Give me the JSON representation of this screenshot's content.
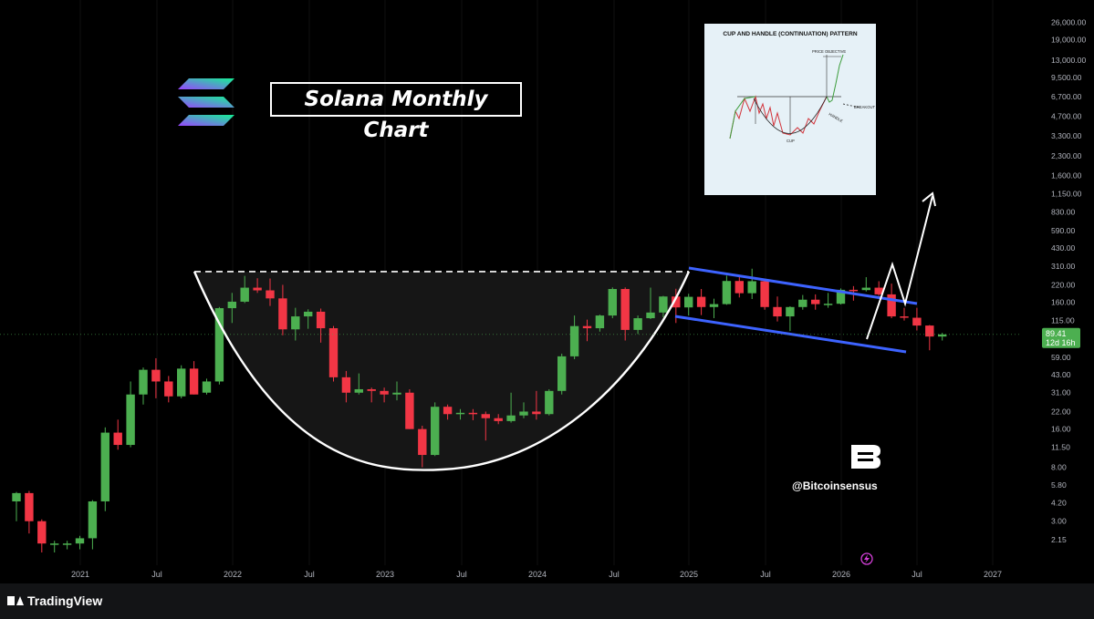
{
  "header": {
    "title": "Solana Monthly Chart"
  },
  "inset": {
    "title": "CUP AND HANDLE (CONTINUATION) PATTERN",
    "labels": {
      "price_objective": "PRICE OBJECTIVE",
      "breakout": "BREAKOUT",
      "handle": "HANDLE",
      "cup": "CUP"
    }
  },
  "branding": {
    "handle": "@Bitcoinsensus",
    "tradingview": "TradingView"
  },
  "chart_data": {
    "type": "candlestick",
    "title": "Solana Monthly Chart",
    "scale": "log",
    "ylim": [
      1.7,
      33000
    ],
    "y_ticks": [
      "26,000.00",
      "19,000.00",
      "13,000.00",
      "9,500.00",
      "6,700.00",
      "4,700.00",
      "3,300.00",
      "2,300.00",
      "1,600.00",
      "1,150.00",
      "830.00",
      "590.00",
      "430.00",
      "310.00",
      "220.00",
      "160.00",
      "115.00",
      "59.00",
      "43.00",
      "31.00",
      "22.00",
      "16.00",
      "11.50",
      "8.00",
      "5.80",
      "4.20",
      "3.00",
      "2.15"
    ],
    "x_ticks": [
      "2021",
      "Jul",
      "2022",
      "Jul",
      "2023",
      "Jul",
      "2024",
      "Jul",
      "2025",
      "Jul",
      "2026",
      "Jul",
      "2027"
    ],
    "last_price": {
      "value": "89.41",
      "countdown": "12d 16h"
    },
    "colors": {
      "up": "#4caf50",
      "down": "#f23645",
      "channel": "#3d63ff",
      "projection": "#ffffff"
    },
    "candles": [
      [
        4.3,
        5.1,
        3.0,
        5.0
      ],
      [
        5.0,
        5.2,
        2.4,
        3.0
      ],
      [
        3.0,
        3.1,
        1.7,
        2.0
      ],
      [
        2.0,
        2.1,
        1.7,
        2.0
      ],
      [
        2.0,
        2.1,
        1.8,
        2.0
      ],
      [
        2.0,
        2.3,
        1.8,
        2.2
      ],
      [
        2.2,
        4.4,
        1.8,
        4.3
      ],
      [
        4.3,
        16.5,
        3.6,
        15.0
      ],
      [
        15.0,
        19.0,
        11.0,
        12.0
      ],
      [
        12.0,
        38.0,
        11.5,
        30.0
      ],
      [
        30.0,
        49.0,
        25.0,
        47.0
      ],
      [
        47.0,
        58.0,
        28.0,
        38.0
      ],
      [
        38.0,
        42.0,
        26.0,
        29.0
      ],
      [
        29.0,
        51.0,
        28.0,
        48.0
      ],
      [
        48.0,
        55.0,
        30.0
      ],
      [
        31.0,
        40.0,
        30.0,
        38.0
      ],
      [
        38.0,
        147.0,
        36.0,
        144.0
      ],
      [
        144.0,
        190.0,
        110.0,
        162.0
      ],
      [
        162.0,
        259.0,
        158.0,
        209.0
      ],
      [
        209.0,
        248.0,
        190.0,
        199.0
      ],
      [
        199.0,
        247.0,
        150.0,
        172.0
      ],
      [
        172.0,
        220.0,
        88.0,
        98.0
      ],
      [
        98.0,
        145.0,
        80.0,
        124.0
      ],
      [
        124.0,
        141.0,
        99.0,
        135.0
      ],
      [
        135.0,
        143.0,
        77.0,
        100.0
      ],
      [
        100.0,
        104.0,
        38.0,
        41.0
      ],
      [
        41.0,
        46.0,
        26.0,
        31.0
      ],
      [
        31.0,
        44.0,
        30.0,
        33.0
      ],
      [
        33.0,
        34.0,
        26.0,
        32.0
      ],
      [
        32.0,
        34.0,
        26.0,
        30.0
      ],
      [
        30.0,
        38.0,
        27.0,
        31.0
      ],
      [
        31.0,
        33.0,
        16.0,
        16.0
      ],
      [
        16.0,
        17.0,
        8.0,
        10.0
      ],
      [
        10.0,
        26.0,
        9.8,
        24.0
      ],
      [
        24.0,
        25.0,
        19.0,
        21.0
      ],
      [
        21.0,
        23.0,
        19.0,
        21.5
      ],
      [
        21.5,
        23.0,
        18.8,
        21.0
      ],
      [
        21.0,
        22.0,
        13.0,
        19.5
      ],
      [
        19.5,
        21.0,
        17.5,
        18.5
      ],
      [
        18.5,
        31.0,
        18.0,
        20.5
      ],
      [
        20.5,
        26.0,
        19.5,
        22.0
      ],
      [
        22.0,
        32.0,
        19.0,
        21.0
      ],
      [
        21.0,
        33.0,
        20.5,
        32.0
      ],
      [
        32.0,
        63.0,
        30.0,
        60.0
      ],
      [
        60.0,
        126.0,
        57.0,
        104.0
      ],
      [
        104.0,
        117.0,
        79.0,
        100.0
      ],
      [
        100.0,
        128.0,
        94.0,
        126.0
      ],
      [
        126.0,
        210.0,
        120.0,
        204.0
      ],
      [
        204.0,
        210.0,
        80.0,
        97.0
      ],
      [
        97.0,
        126.0,
        90.0,
        120.0
      ],
      [
        120.0,
        209.0,
        118.0,
        133.0
      ],
      [
        133.0,
        180.0,
        122.0,
        178.0
      ],
      [
        178.0,
        205.0,
        110.0,
        146.0
      ],
      [
        146.0,
        187.0,
        126.0,
        177.0
      ],
      [
        177.0,
        204.0,
        127.0,
        147.0
      ],
      [
        147.0,
        171.0,
        120.0,
        155.0
      ],
      [
        155.0,
        260.0,
        153.0,
        236.0
      ],
      [
        236.0,
        264.0,
        175.0,
        189.0
      ],
      [
        189.0,
        295.0,
        170.0,
        235.0
      ],
      [
        235.0,
        240.0,
        140.0,
        147.0
      ],
      [
        147.0,
        178.0,
        113.0,
        124.0
      ],
      [
        124.0,
        149.0,
        95.0,
        147.0
      ],
      [
        147.0,
        183.0,
        140.0,
        168.0
      ],
      [
        168.0,
        185.0,
        140.0,
        155.0
      ],
      [
        155.0,
        190.0,
        145.0,
        156.0
      ],
      [
        156.0,
        206.0,
        154.0,
        201.0
      ],
      [
        201.0,
        215.0,
        165.0,
        200.0
      ],
      [
        200.0,
        253.0,
        195.0,
        209.0
      ],
      [
        209.0,
        235.0,
        180.0,
        185.0
      ],
      [
        185.0,
        225.0,
        120.0,
        124.0
      ],
      [
        124.0,
        145.0,
        115.0,
        121.0
      ],
      [
        121.0,
        145.0,
        96.0,
        105.0
      ],
      [
        105.0,
        106.0,
        67.0,
        86.0
      ],
      [
        86.0,
        92.0,
        80.0,
        89.41
      ]
    ]
  }
}
